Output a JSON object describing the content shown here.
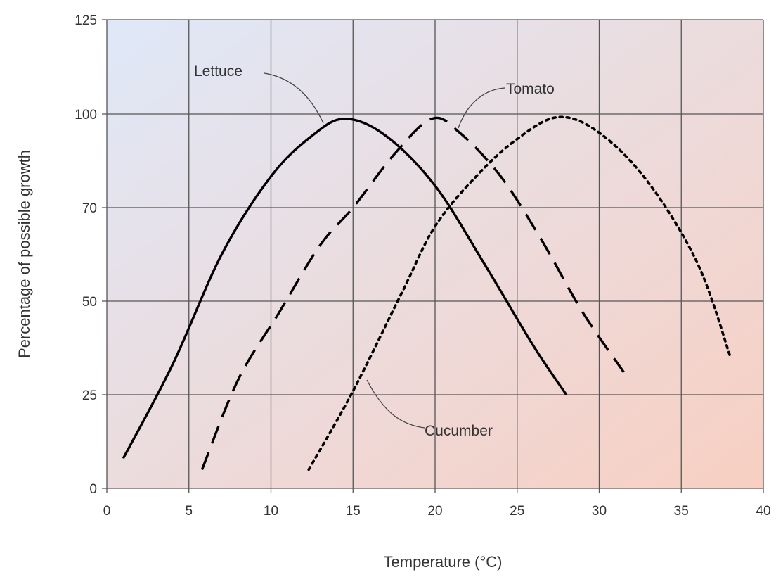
{
  "chart_data": {
    "type": "line",
    "title": "",
    "xlabel": "Temperature (°C)",
    "ylabel": "Percentage of possible growth",
    "xlim": [
      0,
      40
    ],
    "y_ticks": [
      0,
      25,
      50,
      70,
      100,
      125
    ],
    "y_tick_labels": [
      "0",
      "25",
      "50",
      "70",
      "100",
      "125"
    ],
    "x_ticks": [
      0,
      5,
      10,
      15,
      20,
      25,
      30,
      35,
      40
    ],
    "x_tick_labels": [
      "0",
      "5",
      "10",
      "15",
      "20",
      "25",
      "30",
      "35",
      "40"
    ],
    "grid": true,
    "legend": "none (series labeled directly on curves)",
    "colors": {
      "line": "#000000",
      "grid": "#555555",
      "background_start": "#dfe8f8",
      "background_end": "#f8cfc2",
      "text": "#333333"
    },
    "series": [
      {
        "name": "Lettuce",
        "style": "solid",
        "points": [
          [
            1,
            8
          ],
          [
            4,
            33
          ],
          [
            7,
            60
          ],
          [
            10,
            80
          ],
          [
            12.5,
            93
          ],
          [
            14.5,
            98.5
          ],
          [
            17,
            93
          ],
          [
            20,
            77
          ],
          [
            23,
            58
          ],
          [
            26,
            38
          ],
          [
            28,
            25
          ]
        ]
      },
      {
        "name": "Tomato",
        "style": "dashed",
        "points": [
          [
            5.8,
            5
          ],
          [
            8,
            29
          ],
          [
            10.5,
            47
          ],
          [
            13,
            62
          ],
          [
            15,
            70
          ],
          [
            17.5,
            87
          ],
          [
            19.8,
            98.5
          ],
          [
            21.5,
            94
          ],
          [
            24,
            80
          ],
          [
            26.5,
            63
          ],
          [
            29,
            47
          ],
          [
            31.5,
            31
          ]
        ]
      },
      {
        "name": "Cucumber",
        "style": "dotted",
        "points": [
          [
            12.3,
            5
          ],
          [
            15,
            26
          ],
          [
            18,
            52
          ],
          [
            20,
            66
          ],
          [
            22.5,
            80
          ],
          [
            25,
            92
          ],
          [
            27.5,
            99
          ],
          [
            30,
            94
          ],
          [
            33,
            78
          ],
          [
            36,
            58
          ],
          [
            38,
            35
          ]
        ]
      }
    ]
  }
}
